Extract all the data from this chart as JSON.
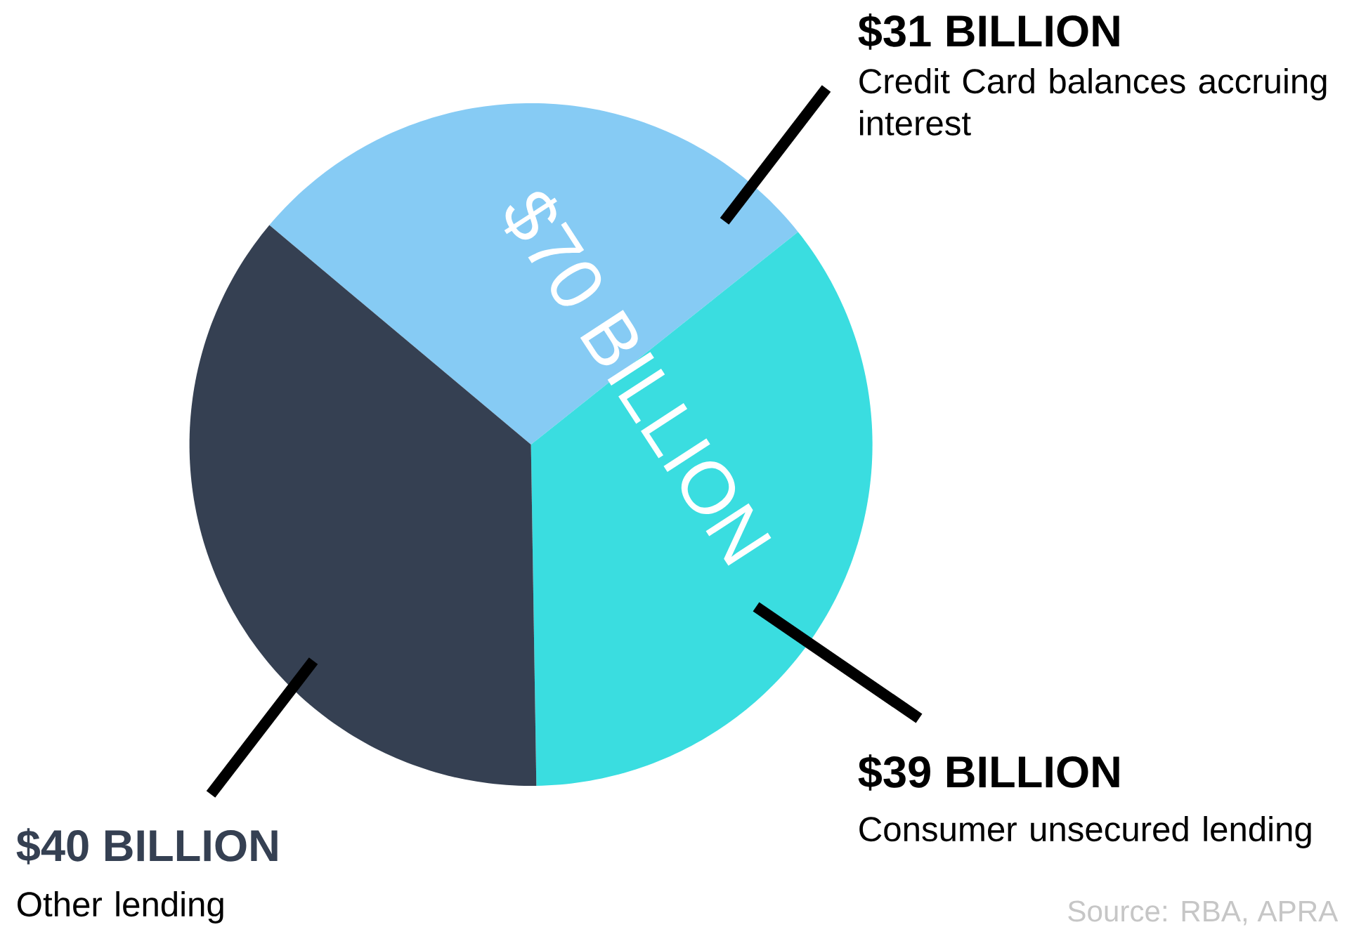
{
  "chart_data": {
    "type": "pie",
    "categories": [
      "Credit Card balances accruing interest",
      "Consumer unsecured lending",
      "Other lending"
    ],
    "values": [
      31,
      39,
      40
    ],
    "value_labels": [
      "$31 BILLION",
      "$39 BILLION",
      "$40 BILLION"
    ],
    "colors": [
      "#86cbf4",
      "#3adde0",
      "#354052"
    ],
    "annotations": [
      "$70 BILLION",
      "Source: RBA, APRA"
    ]
  }
}
